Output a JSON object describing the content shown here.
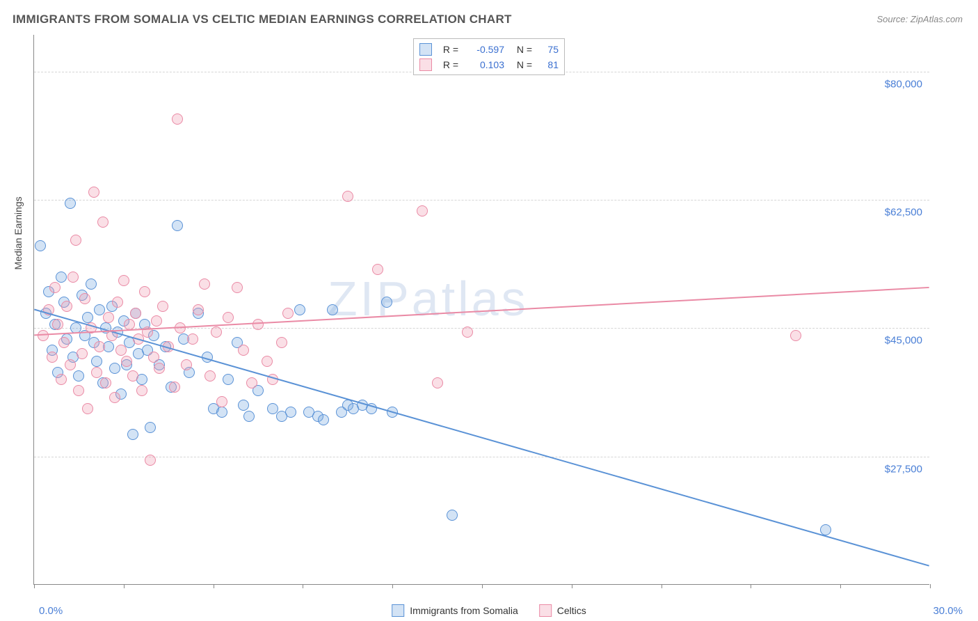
{
  "title": "IMMIGRANTS FROM SOMALIA VS CELTIC MEDIAN EARNINGS CORRELATION CHART",
  "source": "Source: ZipAtlas.com",
  "watermark": "ZIPatlas",
  "yaxis_title": "Median Earnings",
  "chart": {
    "type": "scatter",
    "background_color": "#ffffff",
    "grid_color": "#d5d5d5",
    "axis_color": "#888888",
    "xlim": [
      0,
      30
    ],
    "ylim": [
      10000,
      85000
    ],
    "x_ticks": [
      0,
      3,
      6,
      9,
      12,
      15,
      18,
      21,
      24,
      27,
      30
    ],
    "x_tick_labels": {
      "0": "0.0%",
      "30": "30.0%"
    },
    "y_gridlines": [
      27500,
      45000,
      62500,
      80000
    ],
    "y_tick_labels": [
      "$27,500",
      "$45,000",
      "$62,500",
      "$80,000"
    ],
    "marker_radius": 8,
    "marker_stroke_width": 1.4,
    "marker_fill_opacity": 0.32,
    "axis_label_color": "#4a7fd6",
    "axis_label_fontsize": 15,
    "trend_line_width": 2
  },
  "series": [
    {
      "id": "somalia",
      "label": "Immigrants from Somalia",
      "color_stroke": "#5a92d6",
      "color_fill": "rgba(118,168,224,0.32)",
      "R": "-0.597",
      "N": "75",
      "trend": {
        "x1": 0,
        "y1": 47500,
        "x2": 30,
        "y2": 12500
      },
      "points": [
        [
          0.2,
          56200
        ],
        [
          0.4,
          47000
        ],
        [
          0.5,
          50000
        ],
        [
          0.6,
          42000
        ],
        [
          0.7,
          45500
        ],
        [
          0.8,
          39000
        ],
        [
          0.9,
          52000
        ],
        [
          1.0,
          48500
        ],
        [
          1.1,
          43500
        ],
        [
          1.2,
          62000
        ],
        [
          1.3,
          41000
        ],
        [
          1.4,
          45000
        ],
        [
          1.5,
          38500
        ],
        [
          1.6,
          49500
        ],
        [
          1.7,
          44000
        ],
        [
          1.8,
          46500
        ],
        [
          1.9,
          51000
        ],
        [
          2.0,
          43000
        ],
        [
          2.1,
          40500
        ],
        [
          2.2,
          47500
        ],
        [
          2.3,
          37500
        ],
        [
          2.4,
          45000
        ],
        [
          2.5,
          42500
        ],
        [
          2.6,
          48000
        ],
        [
          2.7,
          39500
        ],
        [
          2.8,
          44500
        ],
        [
          2.9,
          36000
        ],
        [
          3.0,
          46000
        ],
        [
          3.1,
          40000
        ],
        [
          3.2,
          43000
        ],
        [
          3.3,
          30500
        ],
        [
          3.4,
          47000
        ],
        [
          3.5,
          41500
        ],
        [
          3.6,
          38000
        ],
        [
          3.7,
          45500
        ],
        [
          3.8,
          42000
        ],
        [
          3.9,
          31500
        ],
        [
          4.0,
          44000
        ],
        [
          4.2,
          40000
        ],
        [
          4.4,
          42500
        ],
        [
          4.6,
          37000
        ],
        [
          4.8,
          59000
        ],
        [
          5.0,
          43500
        ],
        [
          5.2,
          39000
        ],
        [
          5.5,
          47000
        ],
        [
          5.8,
          41000
        ],
        [
          6.0,
          34000
        ],
        [
          6.3,
          33500
        ],
        [
          6.5,
          38000
        ],
        [
          6.8,
          43000
        ],
        [
          7.0,
          34500
        ],
        [
          7.2,
          33000
        ],
        [
          7.5,
          36500
        ],
        [
          8.0,
          34000
        ],
        [
          8.3,
          33000
        ],
        [
          8.6,
          33500
        ],
        [
          8.9,
          47500
        ],
        [
          9.2,
          33500
        ],
        [
          9.5,
          33000
        ],
        [
          9.7,
          32500
        ],
        [
          10.0,
          47500
        ],
        [
          10.3,
          33500
        ],
        [
          10.5,
          34500
        ],
        [
          10.7,
          34000
        ],
        [
          11.0,
          34500
        ],
        [
          11.3,
          34000
        ],
        [
          11.8,
          48500
        ],
        [
          12.0,
          33500
        ],
        [
          14.0,
          19500
        ],
        [
          26.5,
          17500
        ]
      ]
    },
    {
      "id": "celtics",
      "label": "Celtics",
      "color_stroke": "#ea8aa5",
      "color_fill": "rgba(240,155,178,0.32)",
      "R": "0.103",
      "N": "81",
      "trend": {
        "x1": 0,
        "y1": 44000,
        "x2": 30,
        "y2": 50500
      },
      "points": [
        [
          0.3,
          44000
        ],
        [
          0.5,
          47500
        ],
        [
          0.6,
          41000
        ],
        [
          0.7,
          50500
        ],
        [
          0.8,
          45500
        ],
        [
          0.9,
          38000
        ],
        [
          1.0,
          43000
        ],
        [
          1.1,
          48000
        ],
        [
          1.2,
          40000
        ],
        [
          1.3,
          52000
        ],
        [
          1.4,
          57000
        ],
        [
          1.5,
          36500
        ],
        [
          1.6,
          41500
        ],
        [
          1.7,
          49000
        ],
        [
          1.8,
          34000
        ],
        [
          1.9,
          45000
        ],
        [
          2.0,
          63500
        ],
        [
          2.1,
          39000
        ],
        [
          2.2,
          42500
        ],
        [
          2.3,
          59500
        ],
        [
          2.4,
          37500
        ],
        [
          2.5,
          46500
        ],
        [
          2.6,
          44000
        ],
        [
          2.7,
          35500
        ],
        [
          2.8,
          48500
        ],
        [
          2.9,
          42000
        ],
        [
          3.0,
          51500
        ],
        [
          3.1,
          40500
        ],
        [
          3.2,
          45500
        ],
        [
          3.3,
          38500
        ],
        [
          3.4,
          47000
        ],
        [
          3.5,
          43500
        ],
        [
          3.6,
          36500
        ],
        [
          3.7,
          50000
        ],
        [
          3.8,
          44500
        ],
        [
          3.9,
          27000
        ],
        [
          4.0,
          41000
        ],
        [
          4.1,
          46000
        ],
        [
          4.2,
          39500
        ],
        [
          4.3,
          48000
        ],
        [
          4.5,
          42500
        ],
        [
          4.7,
          37000
        ],
        [
          4.8,
          73500
        ],
        [
          4.9,
          45000
        ],
        [
          5.1,
          40000
        ],
        [
          5.3,
          43500
        ],
        [
          5.5,
          47500
        ],
        [
          5.7,
          51000
        ],
        [
          5.9,
          38500
        ],
        [
          6.1,
          44500
        ],
        [
          6.3,
          35000
        ],
        [
          6.5,
          46500
        ],
        [
          6.8,
          50500
        ],
        [
          7.0,
          42000
        ],
        [
          7.3,
          37500
        ],
        [
          7.5,
          45500
        ],
        [
          7.8,
          40500
        ],
        [
          8.0,
          38000
        ],
        [
          8.3,
          43000
        ],
        [
          8.5,
          47000
        ],
        [
          10.5,
          63000
        ],
        [
          11.5,
          53000
        ],
        [
          13.0,
          61000
        ],
        [
          13.5,
          37500
        ],
        [
          14.5,
          44500
        ],
        [
          25.5,
          44000
        ]
      ]
    }
  ],
  "legend_top": {
    "r_label": "R =",
    "n_label": "N ="
  }
}
